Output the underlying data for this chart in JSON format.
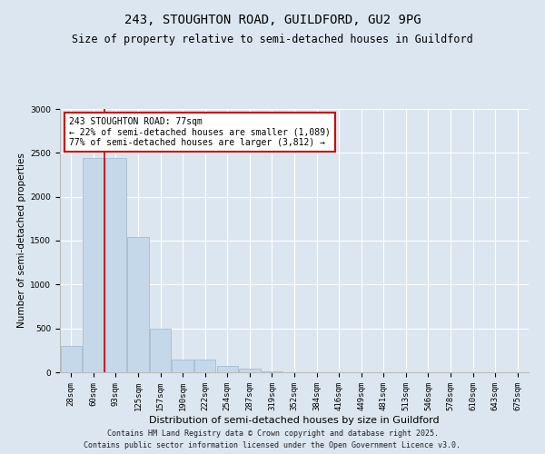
{
  "title1": "243, STOUGHTON ROAD, GUILDFORD, GU2 9PG",
  "title2": "Size of property relative to semi-detached houses in Guildford",
  "xlabel": "Distribution of semi-detached houses by size in Guildford",
  "ylabel": "Number of semi-detached properties",
  "categories": [
    "28sqm",
    "60sqm",
    "93sqm",
    "125sqm",
    "157sqm",
    "190sqm",
    "222sqm",
    "254sqm",
    "287sqm",
    "319sqm",
    "352sqm",
    "384sqm",
    "416sqm",
    "449sqm",
    "481sqm",
    "513sqm",
    "546sqm",
    "578sqm",
    "610sqm",
    "643sqm",
    "675sqm"
  ],
  "values": [
    300,
    2440,
    2440,
    1545,
    500,
    150,
    145,
    75,
    45,
    10,
    5,
    3,
    2,
    1,
    1,
    0,
    0,
    0,
    0,
    0,
    0
  ],
  "bar_color": "#c5d8ea",
  "bar_edge_color": "#9ab5cb",
  "vline_color": "#cc0000",
  "vline_x": 1.48,
  "annotation_text": "243 STOUGHTON ROAD: 77sqm\n← 22% of semi-detached houses are smaller (1,089)\n77% of semi-detached houses are larger (3,812) →",
  "annotation_box_facecolor": "white",
  "annotation_box_edgecolor": "#cc0000",
  "ylim": [
    0,
    3000
  ],
  "yticks": [
    0,
    500,
    1000,
    1500,
    2000,
    2500,
    3000
  ],
  "background_color": "#dce6f0",
  "plot_background": "#dce6f0",
  "grid_color": "white",
  "footer_line1": "Contains HM Land Registry data © Crown copyright and database right 2025.",
  "footer_line2": "Contains public sector information licensed under the Open Government Licence v3.0.",
  "title1_fontsize": 10,
  "title2_fontsize": 8.5,
  "xlabel_fontsize": 8,
  "ylabel_fontsize": 7.5,
  "tick_fontsize": 6.5,
  "annot_fontsize": 7,
  "footer_fontsize": 6
}
